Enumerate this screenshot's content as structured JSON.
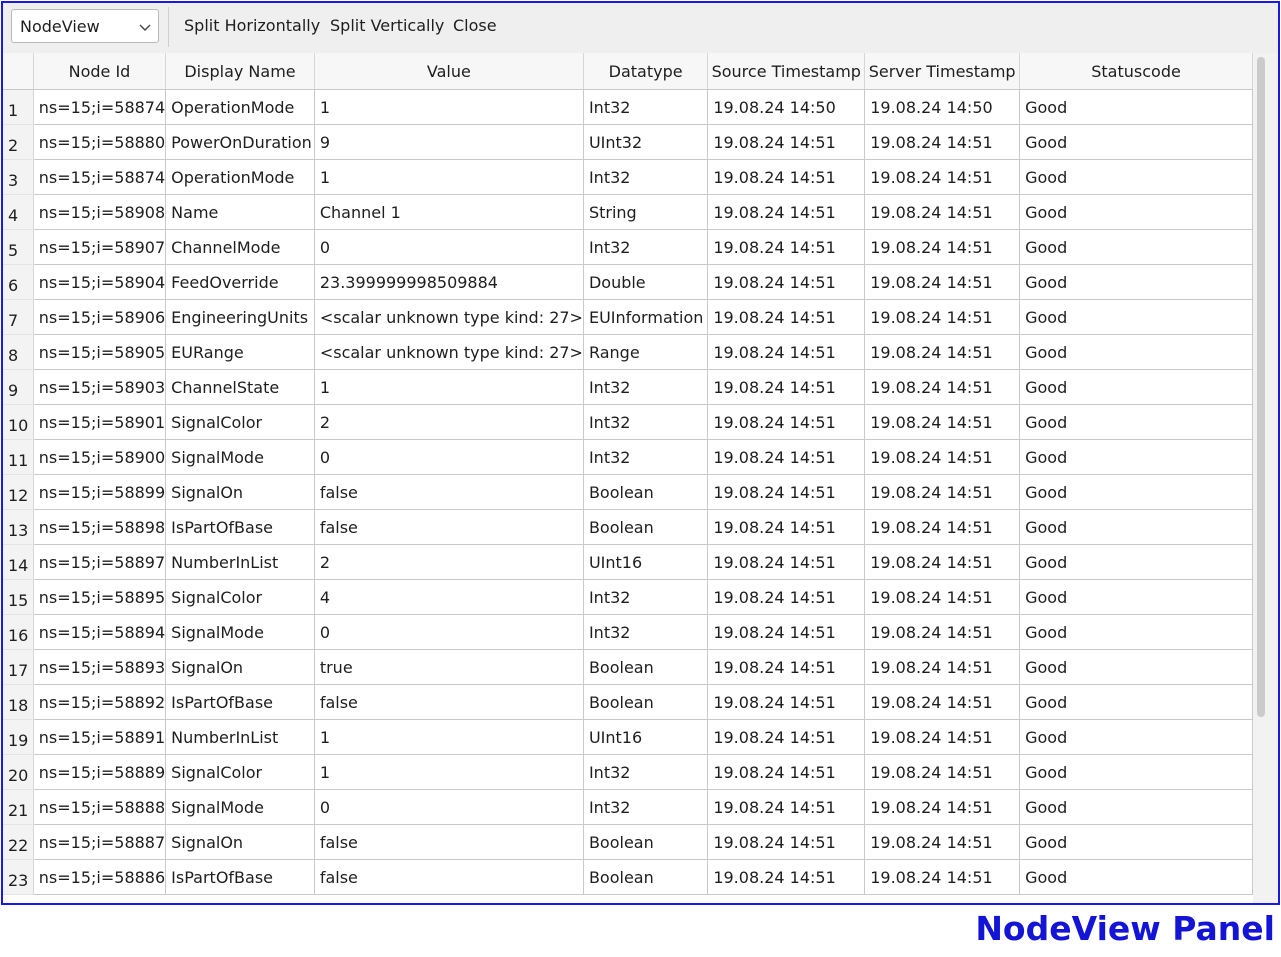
{
  "toolbar": {
    "view_select": "NodeView",
    "split_horizontally": "Split Horizontally",
    "split_vertically": "Split Vertically",
    "close": "Close",
    "chevron_icon": "chevron-down-icon"
  },
  "table": {
    "columns": [
      "Node Id",
      "Display Name",
      "Value",
      "Datatype",
      "Source Timestamp",
      "Server Timestamp",
      "Statuscode"
    ],
    "rows": [
      {
        "n": "1",
        "cells": [
          "ns=15;i=58874",
          "OperationMode",
          "1",
          "Int32",
          "19.08.24 14:50",
          "19.08.24 14:50",
          "Good"
        ]
      },
      {
        "n": "2",
        "cells": [
          "ns=15;i=58880",
          "PowerOnDuration",
          "9",
          "UInt32",
          "19.08.24 14:51",
          "19.08.24 14:51",
          "Good"
        ]
      },
      {
        "n": "3",
        "cells": [
          "ns=15;i=58874",
          "OperationMode",
          "1",
          "Int32",
          "19.08.24 14:51",
          "19.08.24 14:51",
          "Good"
        ]
      },
      {
        "n": "4",
        "cells": [
          "ns=15;i=58908",
          "Name",
          "Channel 1",
          "String",
          "19.08.24 14:51",
          "19.08.24 14:51",
          "Good"
        ]
      },
      {
        "n": "5",
        "cells": [
          "ns=15;i=58907",
          "ChannelMode",
          "0",
          "Int32",
          "19.08.24 14:51",
          "19.08.24 14:51",
          "Good"
        ]
      },
      {
        "n": "6",
        "cells": [
          "ns=15;i=58904",
          "FeedOverride",
          "23.399999998509884",
          "Double",
          "19.08.24 14:51",
          "19.08.24 14:51",
          "Good"
        ]
      },
      {
        "n": "7",
        "cells": [
          "ns=15;i=58906",
          "EngineeringUnits",
          "<scalar unknown type kind: 27>",
          "EUInformation",
          "19.08.24 14:51",
          "19.08.24 14:51",
          "Good"
        ]
      },
      {
        "n": "8",
        "cells": [
          "ns=15;i=58905",
          "EURange",
          "<scalar unknown type kind: 27>",
          "Range",
          "19.08.24 14:51",
          "19.08.24 14:51",
          "Good"
        ]
      },
      {
        "n": "9",
        "cells": [
          "ns=15;i=58903",
          "ChannelState",
          "1",
          "Int32",
          "19.08.24 14:51",
          "19.08.24 14:51",
          "Good"
        ]
      },
      {
        "n": "10",
        "cells": [
          "ns=15;i=58901",
          "SignalColor",
          "2",
          "Int32",
          "19.08.24 14:51",
          "19.08.24 14:51",
          "Good"
        ]
      },
      {
        "n": "11",
        "cells": [
          "ns=15;i=58900",
          "SignalMode",
          "0",
          "Int32",
          "19.08.24 14:51",
          "19.08.24 14:51",
          "Good"
        ]
      },
      {
        "n": "12",
        "cells": [
          "ns=15;i=58899",
          "SignalOn",
          "false",
          "Boolean",
          "19.08.24 14:51",
          "19.08.24 14:51",
          "Good"
        ]
      },
      {
        "n": "13",
        "cells": [
          "ns=15;i=58898",
          "IsPartOfBase",
          "false",
          "Boolean",
          "19.08.24 14:51",
          "19.08.24 14:51",
          "Good"
        ]
      },
      {
        "n": "14",
        "cells": [
          "ns=15;i=58897",
          "NumberInList",
          "2",
          "UInt16",
          "19.08.24 14:51",
          "19.08.24 14:51",
          "Good"
        ]
      },
      {
        "n": "15",
        "cells": [
          "ns=15;i=58895",
          "SignalColor",
          "4",
          "Int32",
          "19.08.24 14:51",
          "19.08.24 14:51",
          "Good"
        ]
      },
      {
        "n": "16",
        "cells": [
          "ns=15;i=58894",
          "SignalMode",
          "0",
          "Int32",
          "19.08.24 14:51",
          "19.08.24 14:51",
          "Good"
        ]
      },
      {
        "n": "17",
        "cells": [
          "ns=15;i=58893",
          "SignalOn",
          "true",
          "Boolean",
          "19.08.24 14:51",
          "19.08.24 14:51",
          "Good"
        ]
      },
      {
        "n": "18",
        "cells": [
          "ns=15;i=58892",
          "IsPartOfBase",
          "false",
          "Boolean",
          "19.08.24 14:51",
          "19.08.24 14:51",
          "Good"
        ]
      },
      {
        "n": "19",
        "cells": [
          "ns=15;i=58891",
          "NumberInList",
          "1",
          "UInt16",
          "19.08.24 14:51",
          "19.08.24 14:51",
          "Good"
        ]
      },
      {
        "n": "20",
        "cells": [
          "ns=15;i=58889",
          "SignalColor",
          "1",
          "Int32",
          "19.08.24 14:51",
          "19.08.24 14:51",
          "Good"
        ]
      },
      {
        "n": "21",
        "cells": [
          "ns=15;i=58888",
          "SignalMode",
          "0",
          "Int32",
          "19.08.24 14:51",
          "19.08.24 14:51",
          "Good"
        ]
      },
      {
        "n": "22",
        "cells": [
          "ns=15;i=58887",
          "SignalOn",
          "false",
          "Boolean",
          "19.08.24 14:51",
          "19.08.24 14:51",
          "Good"
        ]
      },
      {
        "n": "23",
        "cells": [
          "ns=15;i=58886",
          "IsPartOfBase",
          "false",
          "Boolean",
          "19.08.24 14:51",
          "19.08.24 14:51",
          "Good"
        ]
      }
    ]
  },
  "panel_label": "NodeView Panel",
  "colors": {
    "frame_border": "#1a1ae6",
    "panel_label": "#1414d6"
  }
}
